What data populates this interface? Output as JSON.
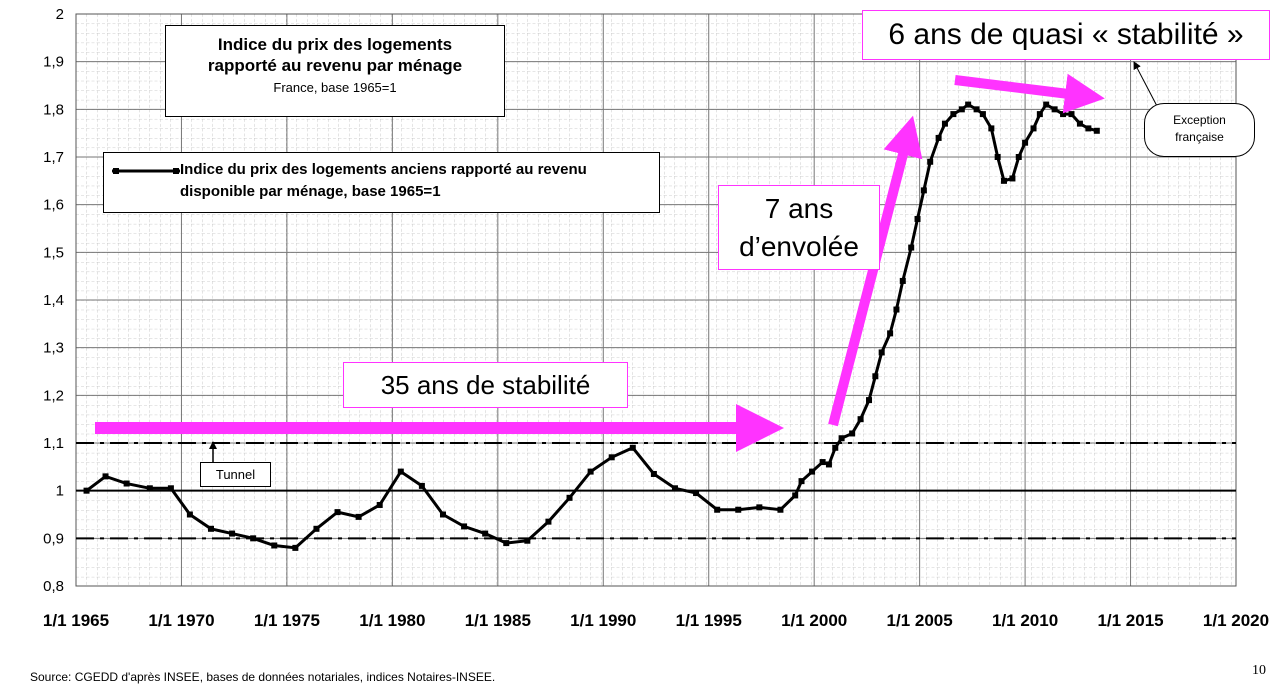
{
  "chart_data": {
    "type": "line",
    "title": "Indice du prix des logements rapporté au revenu par ménage",
    "subtitle": "France, base 1965=1",
    "xlim": [
      1965,
      2020
    ],
    "xticks": [
      {
        "value": 1965,
        "label": "1/1 1965"
      },
      {
        "value": 1970,
        "label": "1/1 1970"
      },
      {
        "value": 1975,
        "label": "1/1 1975"
      },
      {
        "value": 1980,
        "label": "1/1 1980"
      },
      {
        "value": 1985,
        "label": "1/1 1985"
      },
      {
        "value": 1990,
        "label": "1/1 1990"
      },
      {
        "value": 1995,
        "label": "1/1 1995"
      },
      {
        "value": 2000,
        "label": "1/1 2000"
      },
      {
        "value": 2005,
        "label": "1/1 2005"
      },
      {
        "value": 2010,
        "label": "1/1 2010"
      },
      {
        "value": 2015,
        "label": "1/1 2015"
      },
      {
        "value": 2020,
        "label": "1/1 2020"
      }
    ],
    "ylim": [
      0.8,
      2
    ],
    "yticks": [
      {
        "value": 0.8,
        "label": "0,8"
      },
      {
        "value": 0.9,
        "label": "0,9"
      },
      1,
      {
        "value": 1.1,
        "label": "1,1"
      },
      {
        "value": 1.2,
        "label": "1,2"
      },
      {
        "value": 1.3,
        "label": "1,3"
      },
      {
        "value": 1.4,
        "label": "1,4"
      },
      {
        "value": 1.5,
        "label": "1,5"
      },
      {
        "value": 1.6,
        "label": "1,6"
      },
      {
        "value": 1.7,
        "label": "1,7"
      },
      {
        "value": 1.8,
        "label": "1,8"
      },
      {
        "value": 1.9,
        "label": "1,9"
      },
      2
    ],
    "grid": true,
    "minor_grid": true,
    "reference_lines": [
      {
        "value": 1.1,
        "style": "dashdot"
      },
      {
        "value": 1,
        "style": "solid"
      },
      {
        "value": 0.9,
        "style": "dashdot"
      }
    ],
    "x": [
      1965.5,
      1966.4,
      1967.4,
      1968.5,
      1969.5,
      1970.4,
      1971.4,
      1972.4,
      1973.4,
      1974.4,
      1975.4,
      1976.4,
      1977.4,
      1978.4,
      1979.4,
      1980.4,
      1981.4,
      1982.4,
      1983.4,
      1984.4,
      1985.4,
      1986.4,
      1987.4,
      1988.4,
      1989.4,
      1990.4,
      1991.4,
      1992.4,
      1993.4,
      1994.4,
      1995.4,
      1996.4,
      1997.4,
      1998.4,
      1999.1,
      1999.4,
      1999.9,
      2000.4,
      2000.7,
      2001.0,
      2001.3,
      2001.8,
      2002.2,
      2002.6,
      2002.9,
      2003.2,
      2003.6,
      2003.9,
      2004.2,
      2004.6,
      2004.9,
      2005.2,
      2005.5,
      2005.9,
      2006.2,
      2006.6,
      2007.0,
      2007.3,
      2007.7,
      2008.0,
      2008.4,
      2008.7,
      2009.0,
      2009.4,
      2009.7,
      2010.0,
      2010.4,
      2010.7,
      2011.0,
      2011.4,
      2011.8,
      2012.2,
      2012.6,
      2013.0,
      2013.4
    ],
    "series": [
      {
        "name": "Indice du prix des logements anciens rapporté au revenu disponible par ménage, base 1965=1",
        "color": "#000000",
        "values": [
          1.0,
          1.03,
          1.015,
          1.005,
          1.005,
          0.95,
          0.92,
          0.91,
          0.9,
          0.885,
          0.88,
          0.92,
          0.955,
          0.945,
          0.97,
          1.04,
          1.01,
          0.95,
          0.925,
          0.91,
          0.89,
          0.895,
          0.935,
          0.985,
          1.04,
          1.07,
          1.09,
          1.035,
          1.005,
          0.995,
          0.96,
          0.96,
          0.965,
          0.96,
          0.99,
          1.02,
          1.04,
          1.06,
          1.055,
          1.09,
          1.11,
          1.12,
          1.15,
          1.19,
          1.24,
          1.29,
          1.33,
          1.38,
          1.44,
          1.51,
          1.57,
          1.63,
          1.69,
          1.74,
          1.77,
          1.79,
          1.8,
          1.81,
          1.8,
          1.79,
          1.76,
          1.7,
          1.65,
          1.655,
          1.7,
          1.73,
          1.76,
          1.79,
          1.81,
          1.8,
          1.79,
          1.79,
          1.77,
          1.76,
          1.755
        ]
      }
    ],
    "annotations": {
      "stability": "35 ans de stabilité",
      "surge": "7 ans d’envolée",
      "quasi": "6 ans de quasi « stabilité »",
      "tunnel": "Tunnel",
      "exception": "Exception française"
    },
    "source": "Source: CGEDD d'après INSEE, bases de données notariales, indices Notaires-INSEE.",
    "page_number": "10"
  }
}
